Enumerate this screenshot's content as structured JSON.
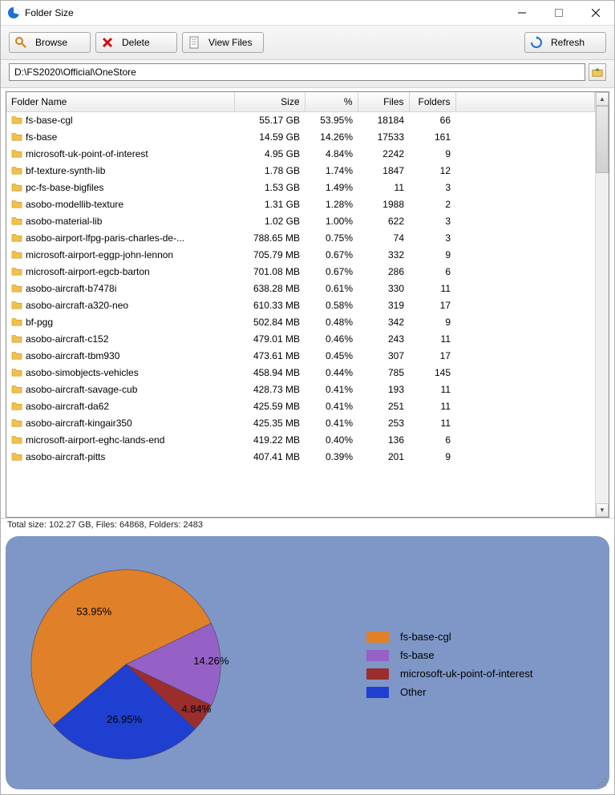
{
  "window": {
    "title": "Folder Size"
  },
  "toolbar": {
    "browse": "Browse",
    "delete": "Delete",
    "viewfiles": "View Files",
    "refresh": "Refresh"
  },
  "path": "D:\\FS2020\\Official\\OneStore",
  "columns": {
    "name": "Folder Name",
    "size": "Size",
    "pct": "%",
    "files": "Files",
    "folders": "Folders"
  },
  "rows": [
    {
      "name": "fs-base-cgl",
      "size": "55.17 GB",
      "pct": "53.95%",
      "files": "18184",
      "folders": "66"
    },
    {
      "name": "fs-base",
      "size": "14.59 GB",
      "pct": "14.26%",
      "files": "17533",
      "folders": "161"
    },
    {
      "name": "microsoft-uk-point-of-interest",
      "size": "4.95 GB",
      "pct": "4.84%",
      "files": "2242",
      "folders": "9"
    },
    {
      "name": "bf-texture-synth-lib",
      "size": "1.78 GB",
      "pct": "1.74%",
      "files": "1847",
      "folders": "12"
    },
    {
      "name": "pc-fs-base-bigfiles",
      "size": "1.53 GB",
      "pct": "1.49%",
      "files": "11",
      "folders": "3"
    },
    {
      "name": "asobo-modellib-texture",
      "size": "1.31 GB",
      "pct": "1.28%",
      "files": "1988",
      "folders": "2"
    },
    {
      "name": "asobo-material-lib",
      "size": "1.02 GB",
      "pct": "1.00%",
      "files": "622",
      "folders": "3"
    },
    {
      "name": "asobo-airport-lfpg-paris-charles-de-...",
      "size": "788.65 MB",
      "pct": "0.75%",
      "files": "74",
      "folders": "3"
    },
    {
      "name": "microsoft-airport-eggp-john-lennon",
      "size": "705.79 MB",
      "pct": "0.67%",
      "files": "332",
      "folders": "9"
    },
    {
      "name": "microsoft-airport-egcb-barton",
      "size": "701.08 MB",
      "pct": "0.67%",
      "files": "286",
      "folders": "6"
    },
    {
      "name": "asobo-aircraft-b7478i",
      "size": "638.28 MB",
      "pct": "0.61%",
      "files": "330",
      "folders": "11"
    },
    {
      "name": "asobo-aircraft-a320-neo",
      "size": "610.33 MB",
      "pct": "0.58%",
      "files": "319",
      "folders": "17"
    },
    {
      "name": "bf-pgg",
      "size": "502.84 MB",
      "pct": "0.48%",
      "files": "342",
      "folders": "9"
    },
    {
      "name": "asobo-aircraft-c152",
      "size": "479.01 MB",
      "pct": "0.46%",
      "files": "243",
      "folders": "11"
    },
    {
      "name": "asobo-aircraft-tbm930",
      "size": "473.61 MB",
      "pct": "0.45%",
      "files": "307",
      "folders": "17"
    },
    {
      "name": "asobo-simobjects-vehicles",
      "size": "458.94 MB",
      "pct": "0.44%",
      "files": "785",
      "folders": "145"
    },
    {
      "name": "asobo-aircraft-savage-cub",
      "size": "428.73 MB",
      "pct": "0.41%",
      "files": "193",
      "folders": "11"
    },
    {
      "name": "asobo-aircraft-da62",
      "size": "425.59 MB",
      "pct": "0.41%",
      "files": "251",
      "folders": "11"
    },
    {
      "name": "asobo-aircraft-kingair350",
      "size": "425.35 MB",
      "pct": "0.41%",
      "files": "253",
      "folders": "11"
    },
    {
      "name": "microsoft-airport-eghc-lands-end",
      "size": "419.22 MB",
      "pct": "0.40%",
      "files": "136",
      "folders": "6"
    },
    {
      "name": "asobo-aircraft-pitts",
      "size": "407.41 MB",
      "pct": "0.39%",
      "files": "201",
      "folders": "9"
    }
  ],
  "status": "Total size: 102.27 GB, Files: 64868, Folders: 2483",
  "chart": {
    "type": "pie",
    "background_color": "#7e97c7",
    "slices": [
      {
        "label": "fs-base-cgl",
        "pct": 53.95,
        "color": "#e08028",
        "text": "53.95%"
      },
      {
        "label": "fs-base",
        "pct": 14.26,
        "color": "#9561c6",
        "text": "14.26%"
      },
      {
        "label": "microsoft-uk-point-of-interest",
        "pct": 4.84,
        "color": "#9c2d2d",
        "text": "4.84%"
      },
      {
        "label": "Other",
        "pct": 26.95,
        "color": "#1f3fd1",
        "text": "26.95%"
      }
    ],
    "legend_font_size": 13,
    "label_font_size": 12
  },
  "icons": {
    "folder_color": "#f0c24c",
    "folder_border": "#c89018"
  }
}
